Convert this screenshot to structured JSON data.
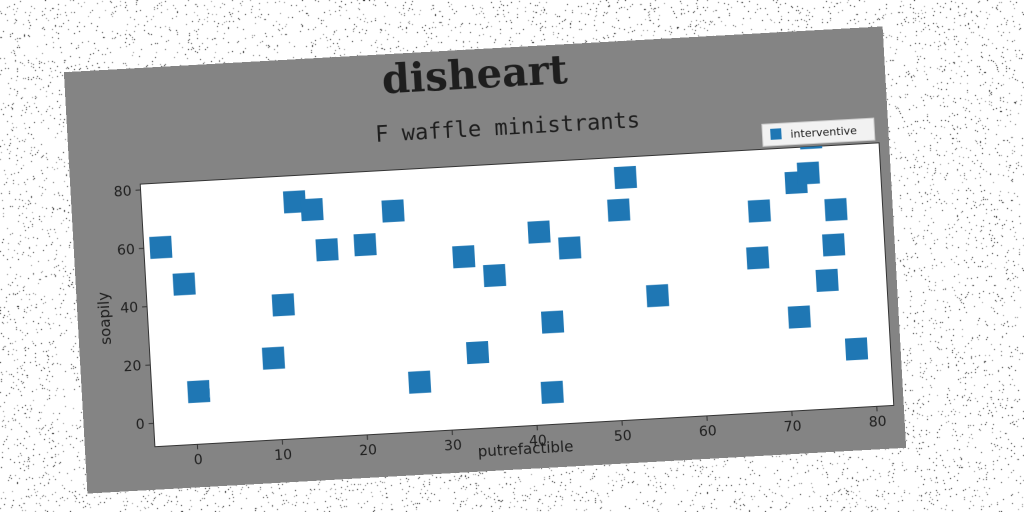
{
  "figure": {
    "suptitle": "disheart"
  },
  "chart_data": {
    "type": "scatter",
    "title": "F waffle ministrants",
    "xlabel": "putrefactible",
    "ylabel": "soapily",
    "xlim": [
      -5,
      82
    ],
    "ylim": [
      -8,
      82
    ],
    "xticks": [
      0,
      10,
      20,
      30,
      40,
      50,
      60,
      70,
      80
    ],
    "yticks": [
      0,
      20,
      40,
      60,
      80
    ],
    "grid": false,
    "legend_position": "top-right",
    "series": [
      {
        "name": "interventive",
        "color": "#1f77b4",
        "marker": "square",
        "points": [
          [
            -3,
            60
          ],
          [
            -0.5,
            47
          ],
          [
            0.5,
            10
          ],
          [
            9.5,
            20
          ],
          [
            11,
            38
          ],
          [
            13,
            73
          ],
          [
            15,
            70
          ],
          [
            16.5,
            56
          ],
          [
            21,
            57
          ],
          [
            24.5,
            68
          ],
          [
            26.5,
            9
          ],
          [
            32.5,
            51
          ],
          [
            33.5,
            18
          ],
          [
            36,
            44
          ],
          [
            41.5,
            58
          ],
          [
            42,
            3
          ],
          [
            42.5,
            27
          ],
          [
            45,
            52
          ],
          [
            51,
            64
          ],
          [
            52,
            75
          ],
          [
            55,
            34
          ],
          [
            67,
            45
          ],
          [
            67.5,
            61
          ],
          [
            70,
            88
          ],
          [
            71.5,
            24
          ],
          [
            72,
            70
          ],
          [
            73,
            91
          ],
          [
            73.5,
            73
          ],
          [
            74,
            85
          ],
          [
            75,
            36
          ],
          [
            76,
            48
          ],
          [
            76.5,
            60
          ],
          [
            78,
            12
          ]
        ]
      }
    ]
  }
}
